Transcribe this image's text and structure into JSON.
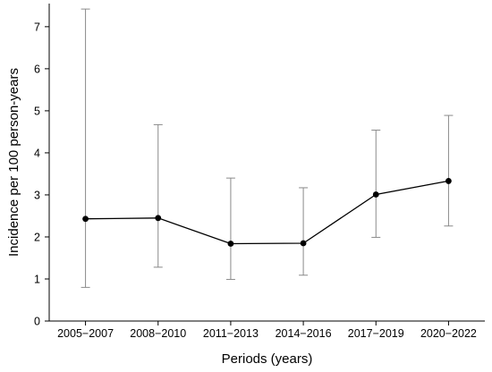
{
  "chart_data": {
    "type": "line",
    "title": "",
    "xlabel": "Periods (years)",
    "ylabel": "Incidence per 100 person-years",
    "categories": [
      "2005−2007",
      "2008−2010",
      "2011−2013",
      "2014−2016",
      "2017−2019",
      "2020−2022"
    ],
    "series": [
      {
        "values": [
          2.43,
          2.45,
          1.84,
          1.85,
          3.01,
          3.33
        ],
        "lower": [
          0.8,
          1.28,
          0.99,
          1.09,
          1.99,
          2.26
        ],
        "upper": [
          7.42,
          4.67,
          3.4,
          3.17,
          4.54,
          4.89
        ]
      }
    ],
    "ylim": [
      0,
      7.55
    ],
    "yticks": [
      0,
      1,
      2,
      3,
      4,
      5,
      6,
      7
    ],
    "grid": false,
    "legend": "none",
    "colors": {
      "line": "#000000",
      "error_bar": "#8a8a8a",
      "marker": "#000000"
    }
  }
}
